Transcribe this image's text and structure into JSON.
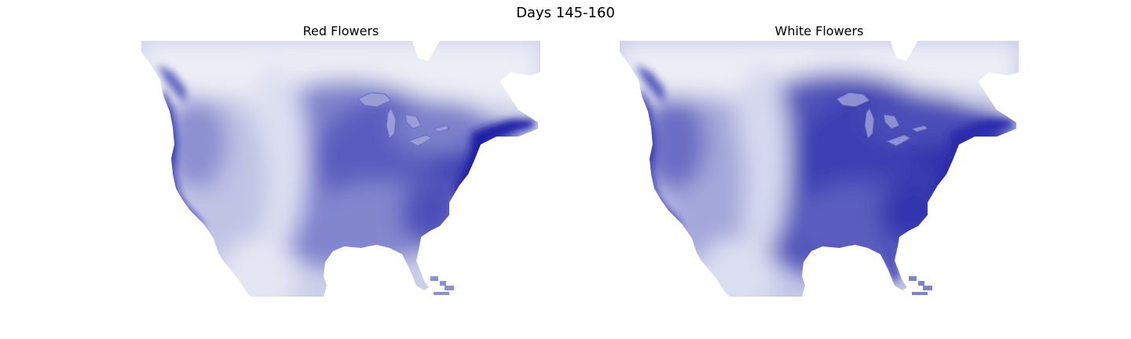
{
  "figure": {
    "title": "Days 145-160"
  },
  "panels": [
    {
      "title": "Red Flowers",
      "colormap": "white-to-navy",
      "accent": "#1a1aa0"
    },
    {
      "title": "White Flowers",
      "colormap": "white-to-navy",
      "accent": "#2a2aae"
    }
  ]
}
